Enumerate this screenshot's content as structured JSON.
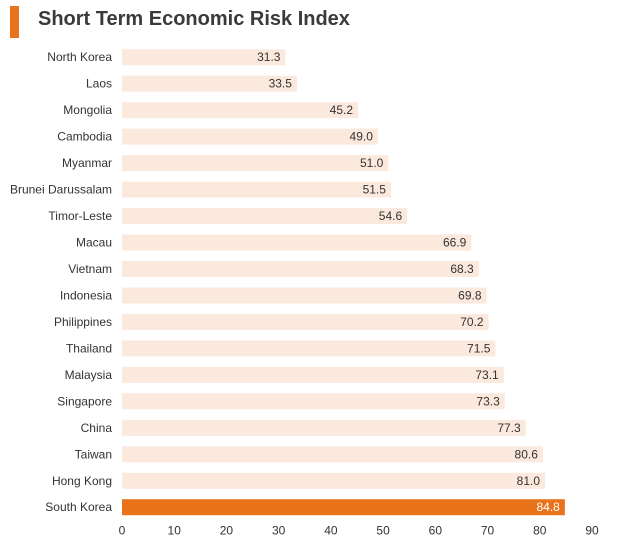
{
  "title": "Short Term Economic Risk Index",
  "colors": {
    "accent": "#E8731A",
    "bar": "#FCE9DE",
    "highlight_bar": "#E8731A",
    "text": "#333333",
    "label_on_highlight": "#ffffff"
  },
  "chart_data": {
    "type": "bar",
    "orientation": "horizontal",
    "categories": [
      "North Korea",
      "Laos",
      "Mongolia",
      "Cambodia",
      "Myanmar",
      "Brunei Darussalam",
      "Timor-Leste",
      "Macau",
      "Vietnam",
      "Indonesia",
      "Philippines",
      "Thailand",
      "Malaysia",
      "Singapore",
      "China",
      "Taiwan",
      "Hong Kong",
      "South Korea"
    ],
    "values": [
      31.3,
      33.5,
      45.2,
      49.0,
      51.0,
      51.5,
      54.6,
      66.9,
      68.3,
      69.8,
      70.2,
      71.5,
      73.1,
      73.3,
      77.3,
      80.6,
      81.0,
      84.8
    ],
    "value_labels": [
      "31.3",
      "33.5",
      "45.2",
      "49.0",
      "51.0",
      "51.5",
      "54.6",
      "66.9",
      "68.3",
      "69.8",
      "70.2",
      "71.5",
      "73.1",
      "73.3",
      "77.3",
      "80.6",
      "81.0",
      "84.8"
    ],
    "highlight_category": "South Korea",
    "xlim": [
      0,
      90
    ],
    "xticks": [
      0,
      10,
      20,
      30,
      40,
      50,
      60,
      70,
      80,
      90
    ],
    "grid": false,
    "legend": "none",
    "title": "Short Term Economic Risk Index",
    "xlabel": "",
    "ylabel": ""
  }
}
